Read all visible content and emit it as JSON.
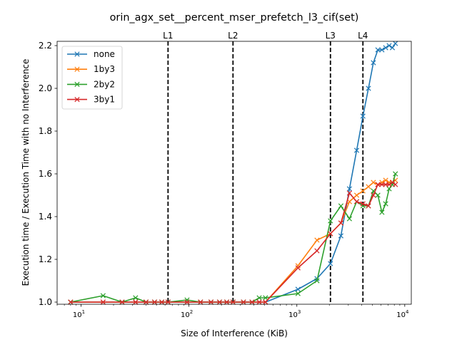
{
  "chart_data": {
    "type": "line",
    "title": "orin_agx_set__percent_mser_prefetch_l3_cif(set)",
    "xlabel": "Size of Interference (KiB)",
    "ylabel": "Execution time / Execution Time with no Interference",
    "xscale": "log",
    "xlim": [
      6,
      11500
    ],
    "ylim": [
      0.99,
      2.22
    ],
    "xticks": [
      {
        "value": 10,
        "label": "10",
        "sup": "1"
      },
      {
        "value": 100,
        "label": "10",
        "sup": "2"
      },
      {
        "value": 1000,
        "label": "10",
        "sup": "3"
      },
      {
        "value": 10000,
        "label": "10",
        "sup": "4"
      }
    ],
    "yticks": [
      1.0,
      1.2,
      1.4,
      1.6,
      1.8,
      2.0,
      2.2
    ],
    "ytick_labels": [
      "1.0",
      "1.2",
      "1.4",
      "1.6",
      "1.8",
      "2.0",
      "2.2"
    ],
    "vlines": [
      {
        "label": "L1",
        "x": 64
      },
      {
        "label": "L2",
        "x": 256
      },
      {
        "label": "L3",
        "x": 2048
      },
      {
        "label": "L4",
        "x": 4096
      }
    ],
    "legend_position": "top-left",
    "series": [
      {
        "name": "none",
        "color": "#1f77b4",
        "x": [
          8,
          16,
          24,
          32,
          40,
          48,
          56,
          64,
          96,
          128,
          160,
          192,
          224,
          256,
          320,
          384,
          448,
          512,
          1024,
          1536,
          2048,
          2560,
          3072,
          3584,
          4096,
          4608,
          5120,
          5632,
          6144,
          6656,
          7168,
          7680,
          8192
        ],
        "y": [
          1.0,
          1.0,
          1.0,
          1.0,
          1.0,
          1.0,
          1.0,
          1.0,
          1.0,
          1.0,
          1.0,
          1.0,
          1.0,
          1.0,
          1.0,
          1.0,
          1.0,
          1.0,
          1.06,
          1.11,
          1.18,
          1.31,
          1.53,
          1.71,
          1.87,
          2.0,
          2.12,
          2.18,
          2.18,
          2.19,
          2.2,
          2.19,
          2.21
        ]
      },
      {
        "name": "1by3",
        "color": "#ff7f0e",
        "x": [
          8,
          16,
          24,
          32,
          40,
          48,
          56,
          64,
          96,
          128,
          160,
          192,
          224,
          256,
          320,
          384,
          448,
          512,
          1024,
          1536,
          2048,
          2560,
          3072,
          3584,
          4096,
          4608,
          5120,
          5632,
          6144,
          6656,
          7168,
          7680,
          8192
        ],
        "y": [
          1.0,
          1.0,
          1.0,
          1.0,
          1.0,
          1.0,
          1.0,
          1.0,
          1.0,
          1.0,
          1.0,
          1.0,
          1.0,
          1.0,
          1.0,
          1.0,
          1.0,
          1.0,
          1.17,
          1.29,
          1.32,
          1.37,
          1.47,
          1.5,
          1.52,
          1.54,
          1.56,
          1.55,
          1.56,
          1.57,
          1.56,
          1.56,
          1.57
        ]
      },
      {
        "name": "2by2",
        "color": "#2ca02c",
        "x": [
          8,
          16,
          24,
          32,
          40,
          48,
          56,
          64,
          96,
          128,
          160,
          192,
          224,
          256,
          320,
          384,
          448,
          512,
          1024,
          1536,
          2048,
          2560,
          3072,
          3584,
          4096,
          4608,
          5120,
          5632,
          6144,
          6656,
          7168,
          7680,
          8192
        ],
        "y": [
          1.0,
          1.03,
          1.0,
          1.02,
          1.0,
          1.0,
          1.0,
          1.0,
          1.01,
          1.0,
          1.0,
          1.0,
          1.0,
          1.0,
          1.0,
          1.0,
          1.02,
          1.02,
          1.04,
          1.1,
          1.38,
          1.45,
          1.39,
          1.47,
          1.45,
          1.45,
          1.52,
          1.5,
          1.42,
          1.46,
          1.53,
          1.55,
          1.6
        ]
      },
      {
        "name": "3by1",
        "color": "#d62728",
        "x": [
          8,
          16,
          24,
          32,
          40,
          48,
          56,
          64,
          96,
          128,
          160,
          192,
          224,
          256,
          320,
          384,
          448,
          512,
          1024,
          1536,
          2048,
          2560,
          3072,
          3584,
          4096,
          4608,
          5120,
          5632,
          6144,
          6656,
          7168,
          7680,
          8192
        ],
        "y": [
          1.0,
          1.0,
          1.0,
          1.0,
          1.0,
          1.0,
          1.0,
          1.0,
          1.0,
          1.0,
          1.0,
          1.0,
          1.0,
          1.0,
          1.0,
          1.0,
          1.0,
          1.0,
          1.16,
          1.24,
          1.32,
          1.37,
          1.51,
          1.47,
          1.46,
          1.45,
          1.5,
          1.55,
          1.55,
          1.55,
          1.55,
          1.56,
          1.55
        ]
      }
    ]
  }
}
